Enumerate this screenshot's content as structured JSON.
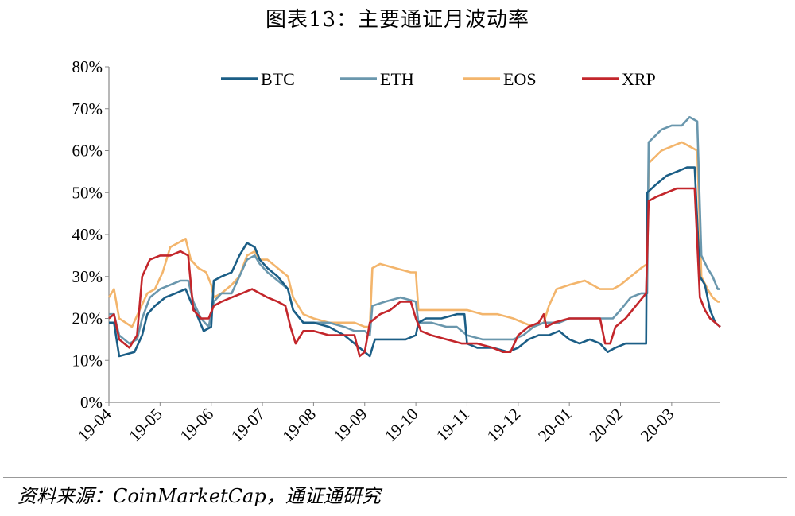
{
  "title": "图表13：主要通证月波动率",
  "source": "资料来源：CoinMarketCap，通证通研究",
  "colors": {
    "BTC": "#1b5e86",
    "ETH": "#6a97ad",
    "EOS": "#f3b56c",
    "XRP": "#c3262b"
  },
  "chart_data": {
    "type": "line",
    "title": "图表13：主要通证月波动率",
    "xlabel": "",
    "ylabel": "",
    "ylim": [
      0,
      80
    ],
    "y_ticks": [
      "0%",
      "10%",
      "20%",
      "30%",
      "40%",
      "50%",
      "60%",
      "70%",
      "80%"
    ],
    "x_ticks": [
      "19-04",
      "19-05",
      "19-06",
      "19-07",
      "19-08",
      "19-09",
      "19-10",
      "19-11",
      "19-12",
      "20-01",
      "20-02",
      "20-03"
    ],
    "x_range_months": [
      0,
      11.95
    ],
    "legend": [
      "BTC",
      "ETH",
      "EOS",
      "XRP"
    ],
    "series": [
      {
        "name": "BTC",
        "points": [
          [
            0,
            19
          ],
          [
            0.1,
            19
          ],
          [
            0.2,
            11
          ],
          [
            0.5,
            12
          ],
          [
            0.65,
            16
          ],
          [
            0.75,
            21
          ],
          [
            0.9,
            23
          ],
          [
            1.1,
            25
          ],
          [
            1.3,
            26
          ],
          [
            1.5,
            27
          ],
          [
            1.6,
            24
          ],
          [
            1.75,
            20
          ],
          [
            1.85,
            17
          ],
          [
            2.0,
            18
          ],
          [
            2.05,
            29
          ],
          [
            2.2,
            30
          ],
          [
            2.4,
            31
          ],
          [
            2.55,
            35
          ],
          [
            2.7,
            38
          ],
          [
            2.85,
            37
          ],
          [
            2.95,
            34
          ],
          [
            3.1,
            32
          ],
          [
            3.3,
            30
          ],
          [
            3.5,
            27
          ],
          [
            3.6,
            22
          ],
          [
            3.8,
            19
          ],
          [
            4.0,
            19
          ],
          [
            4.3,
            18
          ],
          [
            4.6,
            16
          ],
          [
            4.8,
            14
          ],
          [
            5.0,
            12
          ],
          [
            5.1,
            11
          ],
          [
            5.2,
            15
          ],
          [
            5.5,
            15
          ],
          [
            5.8,
            15
          ],
          [
            6.0,
            16
          ],
          [
            6.05,
            19
          ],
          [
            6.2,
            20
          ],
          [
            6.5,
            20
          ],
          [
            6.8,
            21
          ],
          [
            6.95,
            21
          ],
          [
            7.0,
            14
          ],
          [
            7.2,
            13
          ],
          [
            7.5,
            13
          ],
          [
            7.8,
            12
          ],
          [
            8.0,
            13
          ],
          [
            8.2,
            15
          ],
          [
            8.4,
            16
          ],
          [
            8.6,
            16
          ],
          [
            8.8,
            17
          ],
          [
            9.0,
            15
          ],
          [
            9.2,
            14
          ],
          [
            9.4,
            15
          ],
          [
            9.6,
            14
          ],
          [
            9.75,
            12
          ],
          [
            9.9,
            13
          ],
          [
            10.1,
            14
          ],
          [
            10.3,
            14
          ],
          [
            10.5,
            14
          ],
          [
            10.52,
            50
          ],
          [
            10.7,
            52
          ],
          [
            10.9,
            54
          ],
          [
            11.1,
            55
          ],
          [
            11.3,
            56
          ],
          [
            11.45,
            56
          ],
          [
            11.55,
            30
          ],
          [
            11.65,
            28
          ],
          [
            11.75,
            22
          ],
          [
            11.85,
            19
          ],
          [
            11.95,
            18
          ]
        ]
      },
      {
        "name": "ETH",
        "points": [
          [
            0,
            21
          ],
          [
            0.1,
            21
          ],
          [
            0.2,
            16
          ],
          [
            0.4,
            14
          ],
          [
            0.55,
            15
          ],
          [
            0.65,
            20
          ],
          [
            0.8,
            25
          ],
          [
            1.0,
            27
          ],
          [
            1.2,
            28
          ],
          [
            1.4,
            29
          ],
          [
            1.55,
            29
          ],
          [
            1.65,
            24
          ],
          [
            1.8,
            20
          ],
          [
            1.95,
            18
          ],
          [
            2.05,
            24
          ],
          [
            2.2,
            26
          ],
          [
            2.4,
            26
          ],
          [
            2.55,
            30
          ],
          [
            2.7,
            34
          ],
          [
            2.85,
            35
          ],
          [
            2.95,
            33
          ],
          [
            3.1,
            31
          ],
          [
            3.3,
            29
          ],
          [
            3.5,
            27
          ],
          [
            3.6,
            22
          ],
          [
            3.8,
            19
          ],
          [
            4.0,
            19
          ],
          [
            4.3,
            19
          ],
          [
            4.6,
            18
          ],
          [
            4.8,
            17
          ],
          [
            5.0,
            17
          ],
          [
            5.1,
            16
          ],
          [
            5.15,
            23
          ],
          [
            5.4,
            24
          ],
          [
            5.7,
            25
          ],
          [
            6.0,
            24
          ],
          [
            6.05,
            19
          ],
          [
            6.3,
            19
          ],
          [
            6.6,
            18
          ],
          [
            6.8,
            18
          ],
          [
            7.0,
            16
          ],
          [
            7.3,
            15
          ],
          [
            7.6,
            15
          ],
          [
            7.9,
            15
          ],
          [
            8.1,
            16
          ],
          [
            8.3,
            18
          ],
          [
            8.5,
            19
          ],
          [
            8.8,
            19
          ],
          [
            9.0,
            20
          ],
          [
            9.3,
            20
          ],
          [
            9.6,
            20
          ],
          [
            9.85,
            20
          ],
          [
            10.0,
            22
          ],
          [
            10.2,
            25
          ],
          [
            10.4,
            26
          ],
          [
            10.52,
            26
          ],
          [
            10.55,
            62
          ],
          [
            10.8,
            65
          ],
          [
            11.0,
            66
          ],
          [
            11.2,
            66
          ],
          [
            11.35,
            68
          ],
          [
            11.5,
            67
          ],
          [
            11.58,
            35
          ],
          [
            11.7,
            32
          ],
          [
            11.8,
            30
          ],
          [
            11.9,
            27
          ],
          [
            11.95,
            27
          ]
        ]
      },
      {
        "name": "EOS",
        "points": [
          [
            0,
            25
          ],
          [
            0.1,
            27
          ],
          [
            0.2,
            20
          ],
          [
            0.45,
            18
          ],
          [
            0.6,
            22
          ],
          [
            0.75,
            26
          ],
          [
            0.9,
            27
          ],
          [
            1.05,
            31
          ],
          [
            1.2,
            37
          ],
          [
            1.35,
            38
          ],
          [
            1.5,
            39
          ],
          [
            1.6,
            34
          ],
          [
            1.75,
            32
          ],
          [
            1.9,
            31
          ],
          [
            2.0,
            28
          ],
          [
            2.05,
            25
          ],
          [
            2.2,
            26
          ],
          [
            2.4,
            28
          ],
          [
            2.55,
            30
          ],
          [
            2.7,
            35
          ],
          [
            2.85,
            36
          ],
          [
            2.95,
            34
          ],
          [
            3.1,
            34
          ],
          [
            3.3,
            32
          ],
          [
            3.5,
            30
          ],
          [
            3.6,
            25
          ],
          [
            3.8,
            21
          ],
          [
            4.0,
            20
          ],
          [
            4.3,
            19
          ],
          [
            4.6,
            19
          ],
          [
            4.8,
            19
          ],
          [
            5.0,
            18
          ],
          [
            5.1,
            18
          ],
          [
            5.15,
            32
          ],
          [
            5.3,
            33
          ],
          [
            5.6,
            32
          ],
          [
            5.9,
            31
          ],
          [
            6.0,
            31
          ],
          [
            6.05,
            22
          ],
          [
            6.3,
            22
          ],
          [
            6.6,
            22
          ],
          [
            6.9,
            22
          ],
          [
            7.0,
            22
          ],
          [
            7.3,
            21
          ],
          [
            7.6,
            21
          ],
          [
            7.9,
            20
          ],
          [
            8.1,
            19
          ],
          [
            8.3,
            18
          ],
          [
            8.5,
            19
          ],
          [
            8.6,
            23
          ],
          [
            8.75,
            27
          ],
          [
            9.0,
            28
          ],
          [
            9.3,
            29
          ],
          [
            9.6,
            27
          ],
          [
            9.85,
            27
          ],
          [
            10.0,
            28
          ],
          [
            10.2,
            30
          ],
          [
            10.4,
            32
          ],
          [
            10.52,
            33
          ],
          [
            10.55,
            57
          ],
          [
            10.8,
            60
          ],
          [
            11.0,
            61
          ],
          [
            11.2,
            62
          ],
          [
            11.35,
            61
          ],
          [
            11.5,
            60
          ],
          [
            11.58,
            30
          ],
          [
            11.7,
            27
          ],
          [
            11.8,
            25
          ],
          [
            11.9,
            24
          ],
          [
            11.95,
            24
          ]
        ]
      },
      {
        "name": "XRP",
        "points": [
          [
            0,
            20
          ],
          [
            0.1,
            21
          ],
          [
            0.2,
            15
          ],
          [
            0.4,
            13
          ],
          [
            0.55,
            16
          ],
          [
            0.65,
            30
          ],
          [
            0.8,
            34
          ],
          [
            1.0,
            35
          ],
          [
            1.2,
            35
          ],
          [
            1.4,
            36
          ],
          [
            1.55,
            35
          ],
          [
            1.65,
            22
          ],
          [
            1.8,
            20
          ],
          [
            1.95,
            20
          ],
          [
            2.05,
            23
          ],
          [
            2.2,
            24
          ],
          [
            2.4,
            25
          ],
          [
            2.6,
            26
          ],
          [
            2.8,
            27
          ],
          [
            2.95,
            26
          ],
          [
            3.1,
            25
          ],
          [
            3.3,
            24
          ],
          [
            3.45,
            23
          ],
          [
            3.55,
            18
          ],
          [
            3.65,
            14
          ],
          [
            3.8,
            17
          ],
          [
            4.0,
            17
          ],
          [
            4.3,
            16
          ],
          [
            4.6,
            16
          ],
          [
            4.8,
            16
          ],
          [
            4.9,
            11
          ],
          [
            5.0,
            12
          ],
          [
            5.1,
            19
          ],
          [
            5.3,
            21
          ],
          [
            5.5,
            22
          ],
          [
            5.7,
            24
          ],
          [
            5.9,
            24
          ],
          [
            6.0,
            20
          ],
          [
            6.1,
            17
          ],
          [
            6.3,
            16
          ],
          [
            6.6,
            15
          ],
          [
            6.9,
            14
          ],
          [
            7.2,
            14
          ],
          [
            7.5,
            13
          ],
          [
            7.7,
            12
          ],
          [
            7.85,
            12
          ],
          [
            8.0,
            16
          ],
          [
            8.2,
            18
          ],
          [
            8.4,
            19
          ],
          [
            8.5,
            21
          ],
          [
            8.55,
            18
          ],
          [
            8.7,
            19
          ],
          [
            9.0,
            20
          ],
          [
            9.3,
            20
          ],
          [
            9.6,
            20
          ],
          [
            9.7,
            14
          ],
          [
            9.8,
            14
          ],
          [
            9.9,
            18
          ],
          [
            10.1,
            20
          ],
          [
            10.3,
            23
          ],
          [
            10.5,
            26
          ],
          [
            10.55,
            48
          ],
          [
            10.7,
            49
          ],
          [
            10.9,
            50
          ],
          [
            11.1,
            51
          ],
          [
            11.3,
            51
          ],
          [
            11.45,
            51
          ],
          [
            11.55,
            25
          ],
          [
            11.65,
            22
          ],
          [
            11.75,
            20
          ],
          [
            11.85,
            19
          ],
          [
            11.95,
            18
          ]
        ]
      }
    ]
  }
}
